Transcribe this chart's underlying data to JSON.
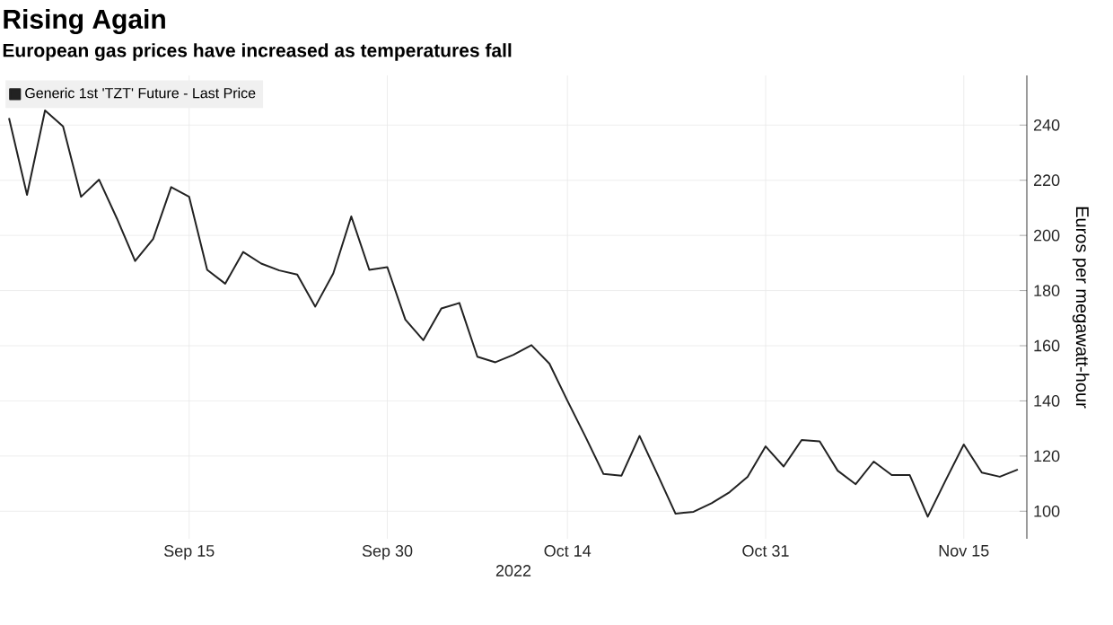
{
  "chart_data": {
    "type": "line",
    "title": "Rising Again",
    "subtitle": "European gas prices have increased as temperatures fall",
    "xlabel": "2022",
    "ylabel": "Euros per megawatt-hour",
    "categories": [
      null,
      null,
      null,
      null,
      null,
      null,
      null,
      null,
      null,
      null,
      "Sep 15",
      null,
      null,
      null,
      null,
      null,
      null,
      null,
      null,
      null,
      null,
      "Sep 30",
      null,
      null,
      null,
      null,
      null,
      null,
      null,
      null,
      null,
      "Oct 14",
      null,
      null,
      null,
      null,
      null,
      null,
      null,
      null,
      null,
      null,
      "Oct 31",
      null,
      null,
      null,
      null,
      null,
      null,
      null,
      null,
      null,
      null,
      "Nov 15",
      null,
      null,
      null
    ],
    "series": [
      {
        "name": "Generic 1st 'TZT' Future - Last Price",
        "color": "#222222",
        "values": [
          242.5,
          214.7,
          245.3,
          239.5,
          214,
          220.2,
          206,
          190.7,
          198.7,
          217.5,
          214,
          187.5,
          182.5,
          194,
          189.8,
          187.3,
          185.8,
          174.2,
          186.2,
          206.9,
          187.5,
          188.5,
          169.5,
          162,
          173.5,
          175.5,
          156,
          154,
          156.7,
          160.2,
          153.5,
          140,
          127,
          113.5,
          112.9,
          127.3,
          113.3,
          99.1,
          99.8,
          102.9,
          106.9,
          112.5,
          123.5,
          116.2,
          125.8,
          125.3,
          114.7,
          109.8,
          118,
          113.1,
          113.1,
          98,
          111.3,
          124.2,
          114,
          112.5,
          115.1
        ]
      }
    ],
    "ylim": [
      90,
      258
    ],
    "yticks": [
      100,
      120,
      140,
      160,
      180,
      200,
      220,
      240
    ],
    "grid": true,
    "legend": "top left"
  }
}
